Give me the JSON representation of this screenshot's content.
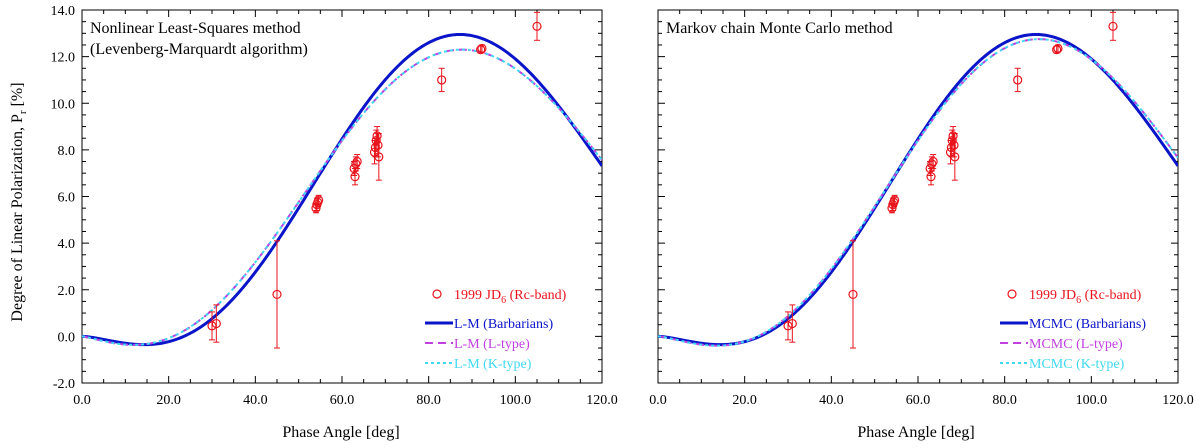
{
  "figure": {
    "ylabel": "Degree of Linear Polarization, P",
    "ylabel_sub": "r",
    "ylabel_unit": " [%]",
    "xlabel": "Phase Angle [deg]"
  },
  "colors": {
    "barbarians": "#0a14c8",
    "ltype": "#c040e0",
    "ktype": "#40d8f0",
    "obs": "#e8141c"
  },
  "chart_data": [
    {
      "type": "line",
      "title": "Nonlinear Least-Squares method",
      "subtitle": "(Levenberg-Marquardt algorithm)",
      "xlabel": "Phase Angle [deg]",
      "ylabel": "Degree of Linear Polarization, Pr [%]",
      "xlim": [
        0,
        120
      ],
      "ylim": [
        -2,
        14
      ],
      "xticks": [
        "0.0",
        "20.0",
        "40.0",
        "60.0",
        "80.0",
        "100.0",
        "120.0"
      ],
      "yticks": [
        "-2.0",
        "0.0",
        "2.0",
        "4.0",
        "6.0",
        "8.0",
        "10.0",
        "12.0",
        "14.0"
      ],
      "legend_position": "bottom-right",
      "observations": {
        "label": "1999 JD",
        "label_sub": "6",
        "label_suffix": " (Rc-band)",
        "points": [
          {
            "x": 30.0,
            "y": 0.45,
            "err": 0.6
          },
          {
            "x": 31.0,
            "y": 0.55,
            "err": 0.8
          },
          {
            "x": 45.0,
            "y": 1.8,
            "err": 2.3
          },
          {
            "x": 54.0,
            "y": 5.5,
            "err": 0.2
          },
          {
            "x": 54.2,
            "y": 5.65,
            "err": 0.25
          },
          {
            "x": 54.4,
            "y": 5.75,
            "err": 0.2
          },
          {
            "x": 54.6,
            "y": 5.85,
            "err": 0.2
          },
          {
            "x": 62.8,
            "y": 7.2,
            "err": 0.3
          },
          {
            "x": 63.0,
            "y": 6.85,
            "err": 0.35
          },
          {
            "x": 63.2,
            "y": 7.4,
            "err": 0.3
          },
          {
            "x": 63.5,
            "y": 7.5,
            "err": 0.3
          },
          {
            "x": 67.5,
            "y": 7.9,
            "err": 0.5
          },
          {
            "x": 67.7,
            "y": 8.1,
            "err": 0.4
          },
          {
            "x": 67.9,
            "y": 8.4,
            "err": 0.45
          },
          {
            "x": 68.1,
            "y": 8.6,
            "err": 0.4
          },
          {
            "x": 68.3,
            "y": 8.2,
            "err": 0.5
          },
          {
            "x": 68.5,
            "y": 7.7,
            "err": 1.0
          },
          {
            "x": 83.0,
            "y": 11.0,
            "err": 0.5
          },
          {
            "x": 92.0,
            "y": 12.3,
            "err": 0.15
          },
          {
            "x": 92.3,
            "y": 12.35,
            "err": 0.15
          },
          {
            "x": 105.0,
            "y": 13.3,
            "err": 0.6
          }
        ]
      },
      "series": [
        {
          "name": "L-M (Barbarians)",
          "style": "solid",
          "color_key": "barbarians",
          "params": {
            "h": 0.1877,
            "a0": 23.5,
            "c1": 1.61,
            "c2": 1.2,
            "x0": 6.0
          }
        },
        {
          "name": "L-M (L-type)",
          "style": "dashed",
          "color_key": "ltype",
          "params": {
            "h": 0.1795,
            "a0": 21.0,
            "c1": 1.32,
            "c2": 1.01,
            "x0": 5.5
          }
        },
        {
          "name": "L-M (K-type)",
          "style": "dotted",
          "color_key": "ktype",
          "params": {
            "h": 0.1795,
            "a0": 21.0,
            "c1": 1.32,
            "c2": 1.01,
            "x0": 5.5
          }
        }
      ]
    },
    {
      "type": "line",
      "title": "Markov chain Monte Carlo method",
      "subtitle": "",
      "xlabel": "Phase Angle [deg]",
      "ylabel": "",
      "xlim": [
        0,
        120
      ],
      "ylim": [
        -2,
        14
      ],
      "xticks": [
        "0.0",
        "20.0",
        "40.0",
        "60.0",
        "80.0",
        "100.0",
        "120.0"
      ],
      "yticks": [],
      "legend_position": "bottom-right",
      "observations": {
        "label": "1999 JD",
        "label_sub": "6",
        "label_suffix": " (Rc-band)",
        "points": [
          {
            "x": 30.0,
            "y": 0.45,
            "err": 0.6
          },
          {
            "x": 31.0,
            "y": 0.55,
            "err": 0.8
          },
          {
            "x": 45.0,
            "y": 1.8,
            "err": 2.3
          },
          {
            "x": 54.0,
            "y": 5.5,
            "err": 0.2
          },
          {
            "x": 54.2,
            "y": 5.65,
            "err": 0.25
          },
          {
            "x": 54.4,
            "y": 5.75,
            "err": 0.2
          },
          {
            "x": 54.6,
            "y": 5.85,
            "err": 0.2
          },
          {
            "x": 62.8,
            "y": 7.2,
            "err": 0.3
          },
          {
            "x": 63.0,
            "y": 6.85,
            "err": 0.35
          },
          {
            "x": 63.2,
            "y": 7.4,
            "err": 0.3
          },
          {
            "x": 63.5,
            "y": 7.5,
            "err": 0.3
          },
          {
            "x": 67.5,
            "y": 7.9,
            "err": 0.5
          },
          {
            "x": 67.7,
            "y": 8.1,
            "err": 0.4
          },
          {
            "x": 67.9,
            "y": 8.4,
            "err": 0.45
          },
          {
            "x": 68.1,
            "y": 8.6,
            "err": 0.4
          },
          {
            "x": 68.3,
            "y": 8.2,
            "err": 0.5
          },
          {
            "x": 68.5,
            "y": 7.7,
            "err": 1.0
          },
          {
            "x": 83.0,
            "y": 11.0,
            "err": 0.5
          },
          {
            "x": 92.0,
            "y": 12.3,
            "err": 0.15
          },
          {
            "x": 92.3,
            "y": 12.35,
            "err": 0.15
          },
          {
            "x": 105.0,
            "y": 13.3,
            "err": 0.6
          }
        ]
      },
      "series": [
        {
          "name": "MCMC (Barbarians)",
          "style": "solid",
          "color_key": "barbarians",
          "params": {
            "h": 0.1877,
            "a0": 23.5,
            "c1": 1.61,
            "c2": 1.2,
            "x0": 6.0
          }
        },
        {
          "name": "MCMC (L-type)",
          "style": "dashed",
          "color_key": "ltype",
          "params": {
            "h": 0.1877,
            "a0": 23.0,
            "c1": 1.45,
            "c2": 1.08,
            "x0": 5.5
          }
        },
        {
          "name": "MCMC (K-type)",
          "style": "dotted",
          "color_key": "ktype",
          "params": {
            "h": 0.1877,
            "a0": 23.0,
            "c1": 1.45,
            "c2": 1.08,
            "x0": 5.5
          }
        }
      ]
    }
  ]
}
